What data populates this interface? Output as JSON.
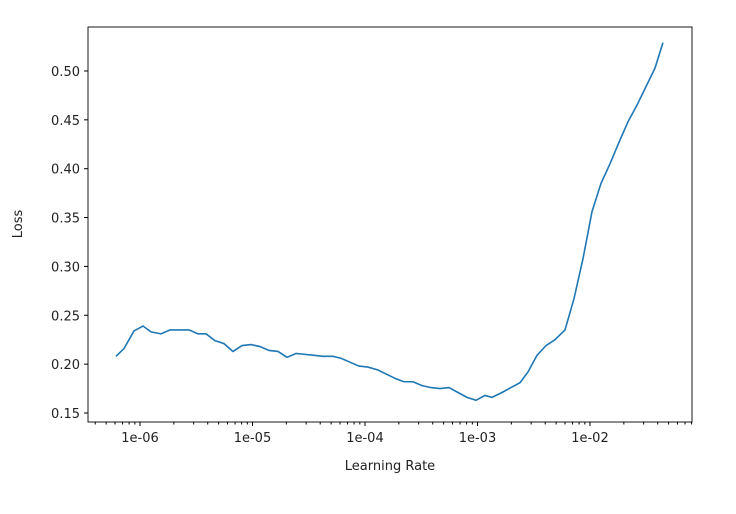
{
  "chart_data": {
    "type": "line",
    "x_label": "Learning Rate",
    "y_label": "Loss",
    "log_x": true,
    "grid": false,
    "xlim": [
      3.45e-07,
      0.0807
    ],
    "ylim": [
      0.1408,
      0.545
    ],
    "xticks": [
      {
        "value": 1e-06,
        "label": "1e-06"
      },
      {
        "value": 1e-05,
        "label": "1e-05"
      },
      {
        "value": 0.0001,
        "label": "1e-04"
      },
      {
        "value": 0.001,
        "label": "1e-03"
      },
      {
        "value": 0.01,
        "label": "1e-02"
      }
    ],
    "yticks": [
      0.15,
      {
        "value": 0.2,
        "label": "0.20"
      },
      0.25,
      {
        "value": 0.3,
        "label": "0.30"
      },
      0.35,
      {
        "value": 0.4,
        "label": "0.40"
      },
      0.45,
      {
        "value": 0.5,
        "label": "0.50"
      }
    ],
    "x": [
      6.12e-07,
      7.21e-07,
      8.84e-07,
      1.063e-06,
      1.253e-06,
      1.537e-06,
      1.848e-06,
      2.268e-06,
      2.727e-06,
      3.279e-06,
      3.861e-06,
      4.642e-06,
      5.58e-06,
      6.71e-06,
      8.07e-06,
      9.7e-06,
      1.166e-05,
      1.402e-05,
      1.686e-05,
      2.027e-05,
      2.437e-05,
      2.929e-05,
      3.522e-05,
      4.234e-05,
      5.195e-05,
      6.12e-05,
      7.36e-05,
      8.85e-05,
      0.0001063,
      0.0001305,
      0.0001537,
      0.0001886,
      0.0002222,
      0.0002672,
      0.0003212,
      0.0003861,
      0.0004642,
      0.000558,
      0.000671,
      0.000807,
      0.00097,
      0.001166,
      0.001345,
      0.001651,
      0.001985,
      0.002387,
      0.002811,
      0.00338,
      0.004064,
      0.004886,
      0.005995,
      0.00721,
      0.00867,
      0.01042,
      0.01253,
      0.01506,
      0.01811,
      0.02177,
      0.02617,
      0.03147,
      0.03784,
      0.04456
    ],
    "series": [
      {
        "name": "Loss",
        "color": "#1f77b4",
        "values": [
          0.208,
          0.216,
          0.234,
          0.239,
          0.233,
          0.231,
          0.235,
          0.235,
          0.235,
          0.231,
          0.231,
          0.224,
          0.221,
          0.213,
          0.219,
          0.22,
          0.218,
          0.214,
          0.213,
          0.207,
          0.211,
          0.21,
          0.209,
          0.208,
          0.208,
          0.206,
          0.202,
          0.198,
          0.197,
          0.194,
          0.19,
          0.185,
          0.182,
          0.182,
          0.178,
          0.176,
          0.175,
          0.176,
          0.171,
          0.166,
          0.163,
          0.168,
          0.166,
          0.171,
          0.176,
          0.181,
          0.192,
          0.209,
          0.219,
          0.225,
          0.235,
          0.267,
          0.308,
          0.356,
          0.385,
          0.405,
          0.427,
          0.448,
          0.465,
          0.484,
          0.503,
          0.529
        ]
      }
    ]
  }
}
